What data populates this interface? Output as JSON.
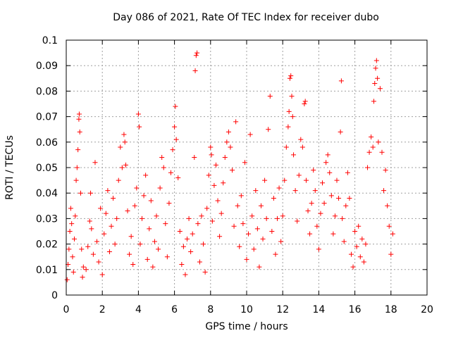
{
  "chart_data": {
    "type": "scatter",
    "title": "Day 086 of 2021, Rate Of TEC Index for receiver dubo",
    "xlabel": "GPS time / hours",
    "ylabel": "ROTI / TECUs",
    "xlim": [
      0,
      20
    ],
    "ylim": [
      0,
      0.1
    ],
    "x_ticks": [
      "0",
      "2",
      "4",
      "6",
      "8",
      "10",
      "12",
      "14",
      "16",
      "18",
      "20"
    ],
    "y_ticks": [
      "0",
      "0.01",
      "0.02",
      "0.03",
      "0.04",
      "0.05",
      "0.06",
      "0.07",
      "0.08",
      "0.09",
      "0.1"
    ],
    "grid": true,
    "marker": "+",
    "color": "#ff0000",
    "series": [
      {
        "points": [
          [
            0.05,
            0.006
          ],
          [
            0.1,
            0.012
          ],
          [
            0.15,
            0.018
          ],
          [
            0.2,
            0.025
          ],
          [
            0.25,
            0.034
          ],
          [
            0.3,
            0.028
          ],
          [
            0.35,
            0.015
          ],
          [
            0.4,
            0.009
          ],
          [
            0.45,
            0.022
          ],
          [
            0.5,
            0.031
          ],
          [
            0.55,
            0.045
          ],
          [
            0.6,
            0.05
          ],
          [
            0.65,
            0.057
          ],
          [
            0.7,
            0.069
          ],
          [
            0.72,
            0.071
          ],
          [
            0.75,
            0.064
          ],
          [
            0.8,
            0.04
          ],
          [
            0.85,
            0.018
          ],
          [
            0.9,
            0.007
          ],
          [
            0.95,
            0.011
          ],
          [
            1.1,
            0.01
          ],
          [
            1.2,
            0.019
          ],
          [
            1.3,
            0.029
          ],
          [
            1.35,
            0.04
          ],
          [
            1.4,
            0.026
          ],
          [
            1.5,
            0.016
          ],
          [
            1.6,
            0.052
          ],
          [
            1.7,
            0.021
          ],
          [
            1.8,
            0.013
          ],
          [
            1.9,
            0.034
          ],
          [
            2.0,
            0.008
          ],
          [
            2.1,
            0.024
          ],
          [
            2.2,
            0.032
          ],
          [
            2.3,
            0.041
          ],
          [
            2.4,
            0.017
          ],
          [
            2.5,
            0.027
          ],
          [
            2.6,
            0.038
          ],
          [
            2.7,
            0.02
          ],
          [
            2.8,
            0.03
          ],
          [
            2.9,
            0.045
          ],
          [
            3.0,
            0.058
          ],
          [
            3.1,
            0.05
          ],
          [
            3.2,
            0.063
          ],
          [
            3.25,
            0.06
          ],
          [
            3.3,
            0.051
          ],
          [
            3.4,
            0.033
          ],
          [
            3.5,
            0.016
          ],
          [
            3.6,
            0.023
          ],
          [
            3.7,
            0.012
          ],
          [
            3.8,
            0.035
          ],
          [
            3.9,
            0.042
          ],
          [
            4.0,
            0.071
          ],
          [
            4.05,
            0.066
          ],
          [
            4.1,
            0.02
          ],
          [
            4.2,
            0.03
          ],
          [
            4.3,
            0.039
          ],
          [
            4.4,
            0.047
          ],
          [
            4.5,
            0.014
          ],
          [
            4.6,
            0.026
          ],
          [
            4.7,
            0.037
          ],
          [
            4.8,
            0.011
          ],
          [
            4.9,
            0.021
          ],
          [
            5.0,
            0.031
          ],
          [
            5.1,
            0.018
          ],
          [
            5.2,
            0.042
          ],
          [
            5.3,
            0.054
          ],
          [
            5.4,
            0.05
          ],
          [
            5.5,
            0.028
          ],
          [
            5.6,
            0.015
          ],
          [
            5.7,
            0.036
          ],
          [
            5.8,
            0.048
          ],
          [
            5.9,
            0.057
          ],
          [
            6.0,
            0.066
          ],
          [
            6.05,
            0.074
          ],
          [
            6.1,
            0.061
          ],
          [
            6.2,
            0.046
          ],
          [
            6.3,
            0.025
          ],
          [
            6.4,
            0.012
          ],
          [
            6.5,
            0.019
          ],
          [
            6.6,
            0.008
          ],
          [
            6.7,
            0.022
          ],
          [
            6.8,
            0.03
          ],
          [
            6.9,
            0.017
          ],
          [
            7.0,
            0.024
          ],
          [
            7.1,
            0.054
          ],
          [
            7.15,
            0.088
          ],
          [
            7.2,
            0.094
          ],
          [
            7.25,
            0.095
          ],
          [
            7.3,
            0.028
          ],
          [
            7.4,
            0.013
          ],
          [
            7.5,
            0.031
          ],
          [
            7.6,
            0.02
          ],
          [
            7.7,
            0.009
          ],
          [
            7.8,
            0.034
          ],
          [
            7.9,
            0.047
          ],
          [
            8.0,
            0.058
          ],
          [
            8.05,
            0.055
          ],
          [
            8.1,
            0.029
          ],
          [
            8.2,
            0.043
          ],
          [
            8.3,
            0.051
          ],
          [
            8.4,
            0.037
          ],
          [
            8.5,
            0.023
          ],
          [
            8.6,
            0.032
          ],
          [
            8.7,
            0.044
          ],
          [
            8.8,
            0.054
          ],
          [
            8.9,
            0.06
          ],
          [
            9.0,
            0.064
          ],
          [
            9.1,
            0.058
          ],
          [
            9.2,
            0.049
          ],
          [
            9.3,
            0.027
          ],
          [
            9.4,
            0.068
          ],
          [
            9.5,
            0.035
          ],
          [
            9.6,
            0.019
          ],
          [
            9.7,
            0.039
          ],
          [
            9.8,
            0.028
          ],
          [
            9.9,
            0.052
          ],
          [
            10.0,
            0.014
          ],
          [
            10.1,
            0.024
          ],
          [
            10.2,
            0.063
          ],
          [
            10.3,
            0.031
          ],
          [
            10.4,
            0.018
          ],
          [
            10.5,
            0.041
          ],
          [
            10.6,
            0.026
          ],
          [
            10.7,
            0.011
          ],
          [
            10.8,
            0.035
          ],
          [
            10.9,
            0.022
          ],
          [
            11.0,
            0.045
          ],
          [
            11.1,
            0.03
          ],
          [
            11.2,
            0.065
          ],
          [
            11.3,
            0.078
          ],
          [
            11.4,
            0.025
          ],
          [
            11.5,
            0.038
          ],
          [
            11.6,
            0.016
          ],
          [
            11.7,
            0.03
          ],
          [
            11.8,
            0.042
          ],
          [
            11.9,
            0.021
          ],
          [
            12.0,
            0.031
          ],
          [
            12.1,
            0.045
          ],
          [
            12.2,
            0.058
          ],
          [
            12.3,
            0.066
          ],
          [
            12.35,
            0.072
          ],
          [
            12.4,
            0.085
          ],
          [
            12.45,
            0.086
          ],
          [
            12.5,
            0.078
          ],
          [
            12.55,
            0.07
          ],
          [
            12.6,
            0.055
          ],
          [
            12.7,
            0.041
          ],
          [
            12.8,
            0.029
          ],
          [
            12.9,
            0.047
          ],
          [
            13.0,
            0.061
          ],
          [
            13.1,
            0.058
          ],
          [
            13.2,
            0.075
          ],
          [
            13.25,
            0.076
          ],
          [
            13.3,
            0.045
          ],
          [
            13.4,
            0.033
          ],
          [
            13.5,
            0.024
          ],
          [
            13.6,
            0.036
          ],
          [
            13.7,
            0.049
          ],
          [
            13.8,
            0.041
          ],
          [
            13.9,
            0.027
          ],
          [
            14.0,
            0.018
          ],
          [
            14.1,
            0.032
          ],
          [
            14.2,
            0.044
          ],
          [
            14.3,
            0.036
          ],
          [
            14.4,
            0.052
          ],
          [
            14.5,
            0.055
          ],
          [
            14.6,
            0.048
          ],
          [
            14.7,
            0.039
          ],
          [
            14.8,
            0.024
          ],
          [
            14.9,
            0.031
          ],
          [
            15.0,
            0.045
          ],
          [
            15.1,
            0.038
          ],
          [
            15.2,
            0.064
          ],
          [
            15.25,
            0.084
          ],
          [
            15.3,
            0.03
          ],
          [
            15.4,
            0.021
          ],
          [
            15.5,
            0.035
          ],
          [
            15.6,
            0.048
          ],
          [
            15.7,
            0.038
          ],
          [
            15.8,
            0.016
          ],
          [
            15.9,
            0.011
          ],
          [
            16.0,
            0.025
          ],
          [
            16.1,
            0.019
          ],
          [
            16.2,
            0.027
          ],
          [
            16.3,
            0.015
          ],
          [
            16.4,
            0.022
          ],
          [
            16.5,
            0.013
          ],
          [
            16.6,
            0.02
          ],
          [
            16.7,
            0.05
          ],
          [
            16.8,
            0.056
          ],
          [
            16.9,
            0.062
          ],
          [
            17.0,
            0.058
          ],
          [
            17.05,
            0.076
          ],
          [
            17.1,
            0.083
          ],
          [
            17.15,
            0.089
          ],
          [
            17.2,
            0.092
          ],
          [
            17.25,
            0.085
          ],
          [
            17.3,
            0.06
          ],
          [
            17.4,
            0.081
          ],
          [
            17.5,
            0.056
          ],
          [
            17.6,
            0.041
          ],
          [
            17.7,
            0.049
          ],
          [
            17.8,
            0.035
          ],
          [
            17.9,
            0.027
          ],
          [
            18.0,
            0.016
          ],
          [
            18.1,
            0.024
          ]
        ]
      }
    ]
  }
}
